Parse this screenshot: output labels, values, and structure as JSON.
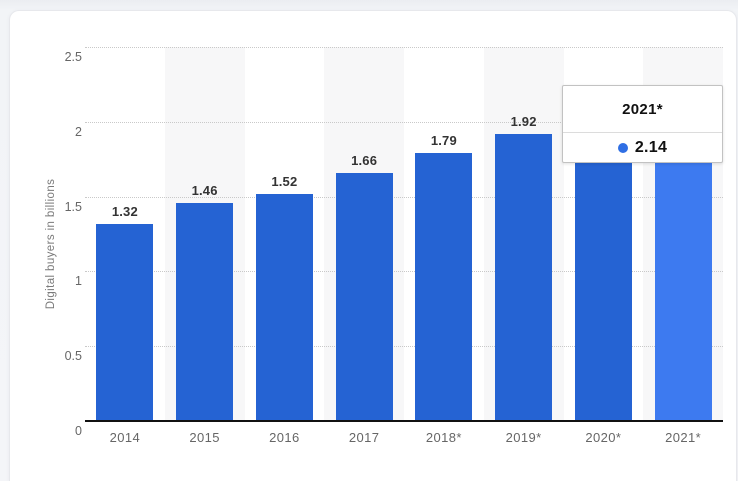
{
  "chart_data": {
    "type": "bar",
    "title": "",
    "xlabel": "",
    "ylabel": "Digital buyers in billions",
    "ylim": [
      0,
      2.5
    ],
    "y_ticks": [
      "0",
      "0.5",
      "1",
      "1.5",
      "2",
      "2.5"
    ],
    "grid": "horizontal-dotted",
    "legend": "none",
    "categories": [
      "2014",
      "2015",
      "2016",
      "2017",
      "2018*",
      "2019*",
      "2020*",
      "2021*"
    ],
    "values": [
      1.32,
      1.46,
      1.52,
      1.66,
      1.79,
      1.92,
      2.05,
      2.14
    ],
    "data_labels": [
      "1.32",
      "1.46",
      "1.52",
      "1.66",
      "1.79",
      "1.92",
      "",
      ""
    ],
    "highlighted_index": 7
  },
  "tooltip": {
    "title": "2021*",
    "value": "2.14"
  },
  "colors": {
    "bar": "#2563d3",
    "bar_highlight": "#3d7af0",
    "stripe": "#f7f7f8",
    "axis": "#111111",
    "tooltip_dot": "#2f6fe4"
  }
}
